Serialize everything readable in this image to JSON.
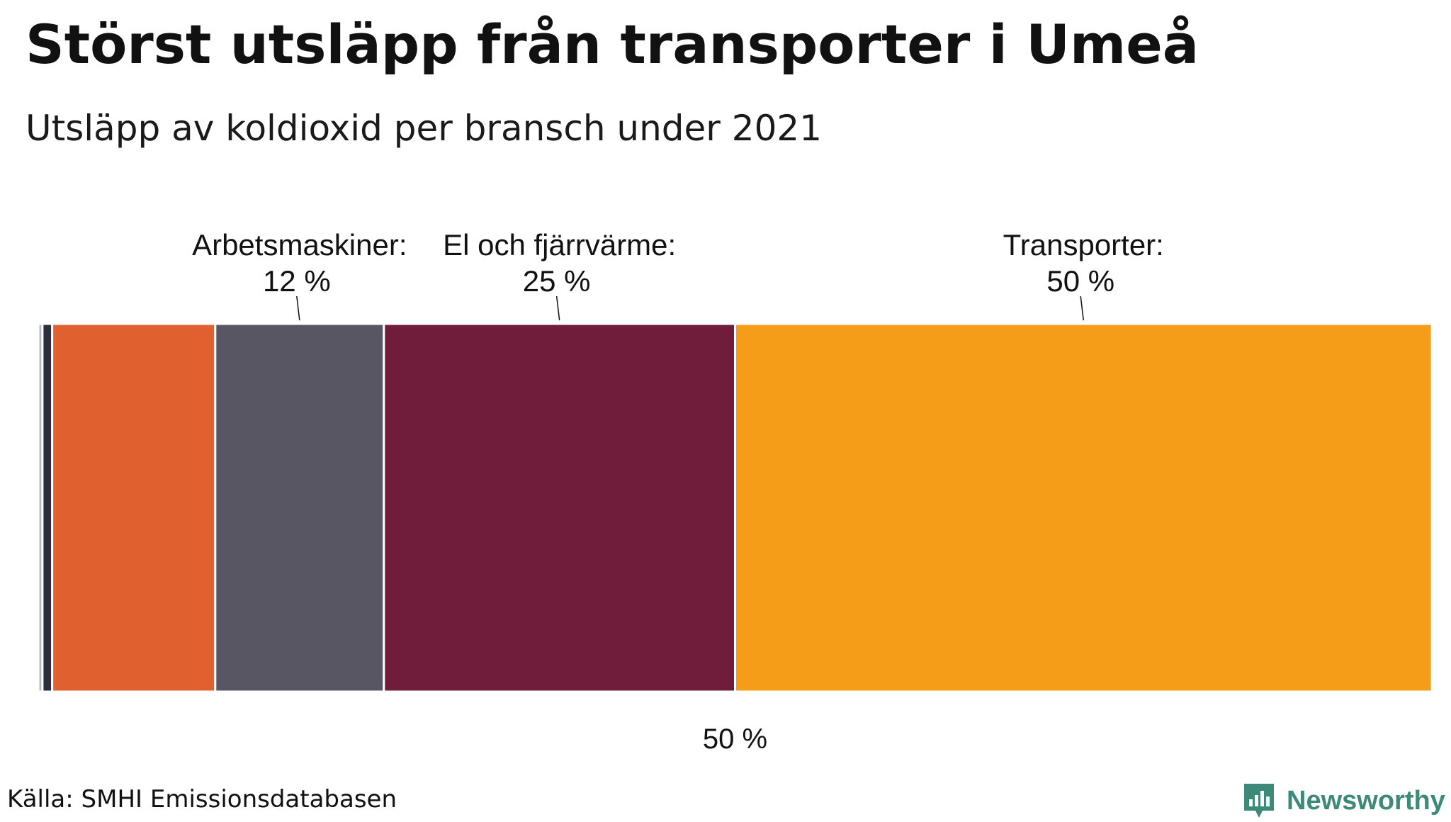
{
  "title": "Störst utsläpp från transporter i Umeå",
  "subtitle": "Utsläpp av koldioxid per bransch under 2021",
  "source": "Källa: SMHI Emissionsdatabasen",
  "brand": "Newsworthy",
  "colors": {
    "background": "#ffffff",
    "brand": "#3d8a78",
    "separator": "#ffffff"
  },
  "chart_data": {
    "type": "bar",
    "orientation": "horizontal-stacked",
    "unit": "%",
    "xlim": [
      0,
      100
    ],
    "segments": [
      {
        "name": "",
        "value": 0.3,
        "color": "#b9b9c6",
        "label": "",
        "value_label": ""
      },
      {
        "name": "",
        "value": 0.7,
        "color": "#2b2d3a",
        "label": "",
        "value_label": ""
      },
      {
        "name": "",
        "value": 11.7,
        "color": "#e0602f",
        "label": "",
        "value_label": ""
      },
      {
        "name": "Arbetsmaskiner",
        "value": 12.1,
        "color": "#595664",
        "label": "Arbetsmaskiner:",
        "value_label": "12 %"
      },
      {
        "name": "El och fjärrvärme",
        "value": 25.2,
        "color": "#701d3b",
        "label": "El och fjärrvärme:",
        "value_label": "25 %"
      },
      {
        "name": "Transporter",
        "value": 50.0,
        "color": "#f59d18",
        "label": "Transporter:",
        "value_label": "50 %"
      }
    ],
    "midpoint_value": 50,
    "midpoint_label": "50 %"
  }
}
